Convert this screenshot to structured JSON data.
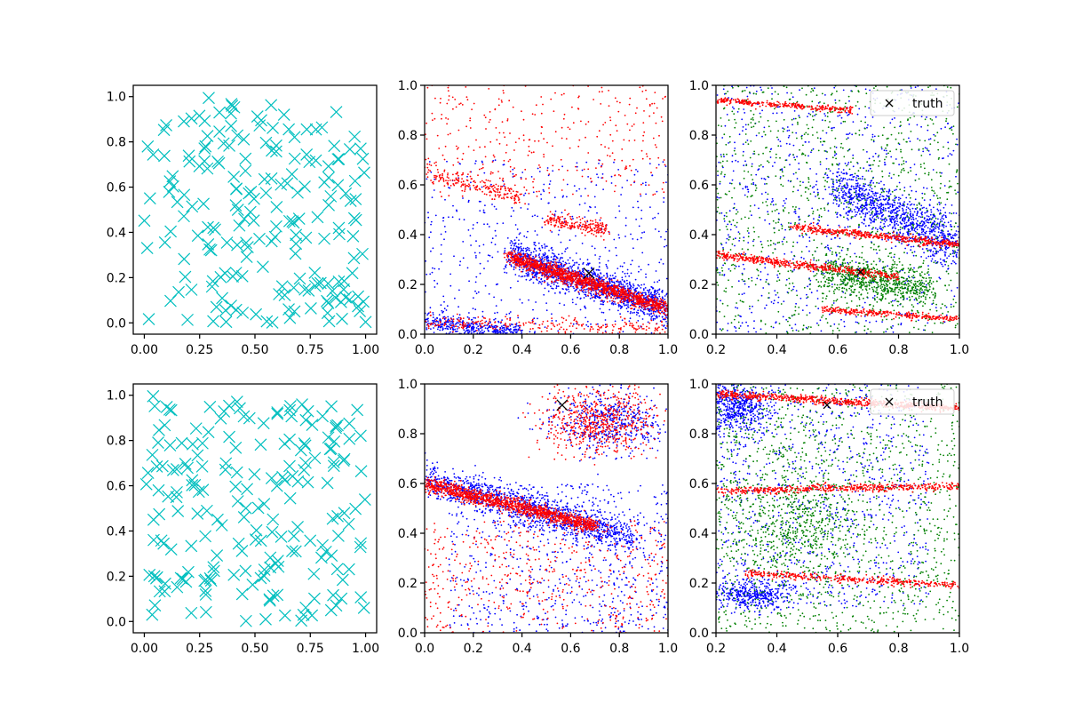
{
  "chart_data": [
    {
      "panel": "row1-col1",
      "type": "scatter",
      "title": "",
      "xlabel": "",
      "ylabel": "",
      "xlim": [
        -0.05,
        1.05
      ],
      "ylim": [
        -0.05,
        1.05
      ],
      "xticks": [
        "0.00",
        "0.25",
        "0.50",
        "0.75",
        "1.00"
      ],
      "yticks": [
        "0.0",
        "0.2",
        "0.4",
        "0.6",
        "0.8",
        "1.0"
      ],
      "series": [
        {
          "marker": "x",
          "color": "#00bfbf",
          "count": 200,
          "distribution": "uniform random over [0,1]x[0,1]"
        }
      ]
    },
    {
      "panel": "row1-col2",
      "type": "scatter",
      "title": "",
      "xlabel": "",
      "ylabel": "",
      "xlim": [
        0,
        1
      ],
      "ylim": [
        0,
        1
      ],
      "xticks": [
        "0.0",
        "0.2",
        "0.4",
        "0.6",
        "0.8",
        "1.0"
      ],
      "yticks": [
        "0.0",
        "0.2",
        "0.4",
        "0.6",
        "0.8",
        "1.0"
      ],
      "series": [
        {
          "marker": "dot",
          "color": "#0000ff",
          "count": 2400,
          "distribution": "dense band from (0.35,0.32) to (1.0,0.10) plus scatter"
        },
        {
          "marker": "dot",
          "color": "#ff0000",
          "count": 2400,
          "distribution": "dense band from (0.35,0.31) to (1.0,0.10), streaks near y=0.45, 0.6, 0.0 and sparse top"
        }
      ],
      "truth": {
        "x": 0.675,
        "y": 0.245,
        "marker": "x",
        "color": "#000000"
      }
    },
    {
      "panel": "row1-col3",
      "type": "scatter",
      "title": "",
      "xlabel": "",
      "ylabel": "",
      "xlim": [
        0.2,
        1
      ],
      "ylim": [
        0,
        1
      ],
      "xticks": [
        "0.2",
        "0.4",
        "0.6",
        "0.8",
        "1.0"
      ],
      "yticks": [
        "0.0",
        "0.2",
        "0.4",
        "0.6",
        "0.8",
        "1.0"
      ],
      "legend": {
        "label": "truth",
        "placement": "upper right"
      },
      "series": [
        {
          "marker": "dot",
          "color": "#0000ff",
          "count": 1800,
          "distribution": "band from (0.6,0.6) to (1.0,0.35) plus scatter"
        },
        {
          "marker": "dot",
          "color": "#008000",
          "count": 1800,
          "distribution": "broad diffuse cloud, band near (0.6-0.9, 0.2)"
        },
        {
          "marker": "dot",
          "color": "#ff0000",
          "count": 1600,
          "distribution": "thin lines near y=0.32->0.23, y=0.43->0.36, y=0.93->0.9, y=0.1->0.06"
        }
      ],
      "truth": {
        "x": 0.675,
        "y": 0.25,
        "marker": "x",
        "color": "#000000"
      }
    },
    {
      "panel": "row2-col1",
      "type": "scatter",
      "title": "",
      "xlabel": "",
      "ylabel": "",
      "xlim": [
        -0.05,
        1.05
      ],
      "ylim": [
        -0.05,
        1.05
      ],
      "xticks": [
        "0.00",
        "0.25",
        "0.50",
        "0.75",
        "1.00"
      ],
      "yticks": [
        "0.0",
        "0.2",
        "0.4",
        "0.6",
        "0.8",
        "1.0"
      ],
      "series": [
        {
          "marker": "x",
          "color": "#00bfbf",
          "count": 200,
          "distribution": "uniform random over [0,1]x[0,1]"
        }
      ]
    },
    {
      "panel": "row2-col2",
      "type": "scatter",
      "title": "",
      "xlabel": "",
      "ylabel": "",
      "xlim": [
        0,
        1
      ],
      "ylim": [
        0,
        1
      ],
      "xticks": [
        "0.0",
        "0.2",
        "0.4",
        "0.6",
        "0.8",
        "1.0"
      ],
      "yticks": [
        "0.0",
        "0.2",
        "0.4",
        "0.6",
        "0.8",
        "1.0"
      ],
      "series": [
        {
          "marker": "dot",
          "color": "#0000ff",
          "count": 2400,
          "distribution": "band from (0.0,0.62) to (0.85,0.38) and cloud below"
        },
        {
          "marker": "dot",
          "color": "#ff0000",
          "count": 2400,
          "distribution": "band from (0.0,0.6) to (0.7,0.43), upper-right cluster near (0.7,0.85), scatter"
        }
      ],
      "truth": {
        "x": 0.565,
        "y": 0.915,
        "marker": "x",
        "color": "#000000"
      }
    },
    {
      "panel": "row2-col3",
      "type": "scatter",
      "title": "",
      "xlabel": "",
      "ylabel": "",
      "xlim": [
        0.2,
        1
      ],
      "ylim": [
        0,
        1
      ],
      "xticks": [
        "0.2",
        "0.4",
        "0.6",
        "0.8",
        "1.0"
      ],
      "yticks": [
        "0.0",
        "0.2",
        "0.4",
        "0.6",
        "0.8",
        "1.0"
      ],
      "legend": {
        "label": "truth",
        "placement": "upper right"
      },
      "series": [
        {
          "marker": "dot",
          "color": "#0000ff",
          "count": 1800,
          "distribution": "cloud across left/middle, cluster near (0.25,0.9) and (0.3,0.15)"
        },
        {
          "marker": "dot",
          "color": "#008000",
          "count": 1800,
          "distribution": "broad diffuse cloud"
        },
        {
          "marker": "dot",
          "color": "#ff0000",
          "count": 1600,
          "distribution": "thin lines near y=0.96->0.9, y=0.57->0.59, y=0.24->0.19"
        }
      ],
      "truth": {
        "x": 0.565,
        "y": 0.915,
        "marker": "x",
        "color": "#000000"
      }
    }
  ]
}
